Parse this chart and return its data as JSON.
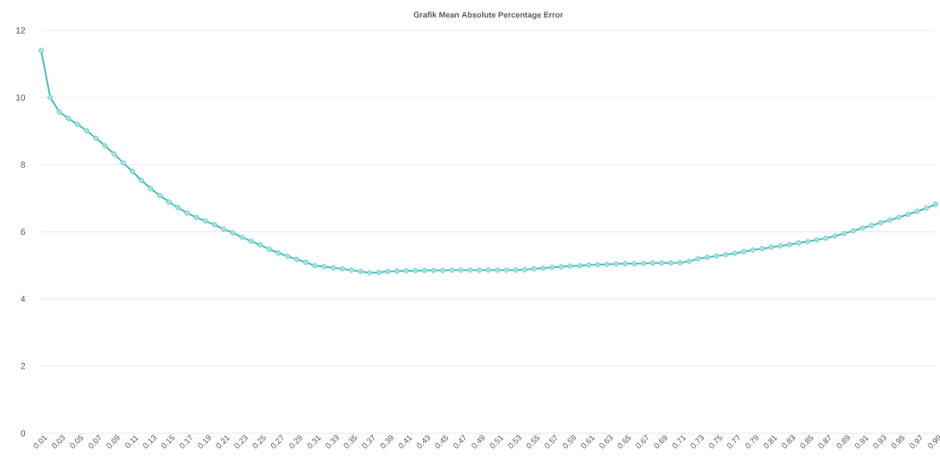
{
  "chart_data": {
    "type": "line",
    "title": "Grafik Mean Absolute Percentage Error",
    "categories": [
      "0.01",
      null,
      "0.03",
      null,
      "0.05",
      null,
      "0.07",
      null,
      "0.09",
      null,
      "0.11",
      null,
      "0.13",
      null,
      "0.15",
      null,
      "0.17",
      null,
      "0.19",
      null,
      "0.21",
      null,
      "0.23",
      null,
      "0.25",
      null,
      "0.27",
      null,
      "0.29",
      null,
      "0.31",
      null,
      "0.33",
      null,
      "0.35",
      null,
      "0.37",
      null,
      "0.39",
      null,
      "0.41",
      null,
      "0.43",
      null,
      "0.45",
      null,
      "0.47",
      null,
      "0.49",
      null,
      "0.51",
      null,
      "0.53",
      null,
      "0.55",
      null,
      "0.57",
      null,
      "0.59",
      null,
      "0.61",
      null,
      "0.63",
      null,
      "0.65",
      null,
      "0.67",
      null,
      "0.69",
      null,
      "0.71",
      null,
      "0.73",
      null,
      "0.75",
      null,
      "0.77",
      null,
      "0.79",
      null,
      "0.81",
      null,
      "0.83",
      null,
      "0.85",
      null,
      "0.87",
      null,
      "0.89",
      null,
      "0.91",
      null,
      "0.93",
      null,
      "0.95",
      null,
      "0.97",
      null,
      "0.99"
    ],
    "series": [
      {
        "color": "#3dbdb6",
        "values": [
          11.4,
          10.0,
          9.57,
          9.37,
          9.2,
          9.01,
          8.79,
          8.56,
          8.32,
          8.05,
          7.8,
          7.53,
          7.29,
          7.08,
          6.89,
          6.72,
          6.56,
          6.43,
          6.32,
          6.21,
          6.08,
          5.97,
          5.84,
          5.72,
          5.61,
          5.48,
          5.37,
          5.27,
          5.18,
          5.09,
          4.99,
          4.96,
          4.93,
          4.9,
          4.86,
          4.82,
          4.78,
          4.79,
          4.82,
          4.83,
          4.84,
          4.84,
          4.85,
          4.85,
          4.85,
          4.86,
          4.86,
          4.86,
          4.86,
          4.86,
          4.86,
          4.86,
          4.86,
          4.87,
          4.9,
          4.92,
          4.94,
          4.96,
          4.98,
          4.99,
          5.01,
          5.02,
          5.03,
          5.04,
          5.05,
          5.05,
          5.06,
          5.07,
          5.07,
          5.07,
          5.08,
          5.12,
          5.2,
          5.24,
          5.28,
          5.32,
          5.36,
          5.41,
          5.46,
          5.5,
          5.54,
          5.58,
          5.62,
          5.67,
          5.71,
          5.76,
          5.81,
          5.88,
          5.95,
          6.03,
          6.11,
          6.19,
          6.27,
          6.35,
          6.43,
          6.52,
          6.61,
          6.71,
          6.82
        ]
      }
    ],
    "ylim": [
      0,
      12
    ],
    "yticks": [
      0,
      2,
      4,
      6,
      8,
      10,
      12
    ],
    "grid": "y",
    "marker": "circle",
    "line_style": "solid"
  }
}
